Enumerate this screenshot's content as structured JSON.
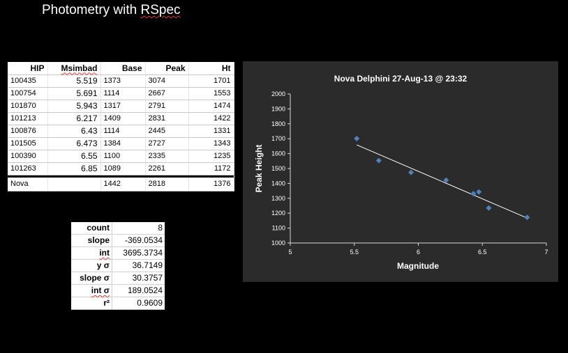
{
  "page": {
    "title_prefix": "Photometry with ",
    "title_underlined": "RSpec"
  },
  "table": {
    "headers": [
      "HIP",
      "Msimbad",
      "Base",
      "Peak",
      "Ht"
    ],
    "rows": [
      [
        "100435",
        "5.519",
        "1373",
        "3074",
        "1701"
      ],
      [
        "100754",
        "5.691",
        "1114",
        "2667",
        "1553"
      ],
      [
        "101870",
        "5.943",
        "1317",
        "2791",
        "1474"
      ],
      [
        "101213",
        "6.217",
        "1409",
        "2831",
        "1422"
      ],
      [
        "100876",
        "6.43",
        "1114",
        "2445",
        "1331"
      ],
      [
        "101505",
        "6.473",
        "1384",
        "2727",
        "1343"
      ],
      [
        "100390",
        "6.55",
        "1100",
        "2335",
        "1235"
      ],
      [
        "101263",
        "6.85",
        "1089",
        "2261",
        "1172"
      ]
    ],
    "nova_row": [
      "Nova",
      "",
      "1442",
      "2818",
      "1376"
    ]
  },
  "stats": [
    {
      "label": "count",
      "value": "8"
    },
    {
      "label": "slope",
      "value": "-369.0534"
    },
    {
      "label": "int",
      "value": "3695.3734"
    },
    {
      "label": "y σ",
      "value": "36.7149"
    },
    {
      "label": "slope σ",
      "value": "30.3757"
    },
    {
      "label": "int σ",
      "value": "189.0524"
    },
    {
      "label": "r²",
      "value": "0.9609"
    }
  ],
  "colors": {
    "background": "#000000",
    "chart_bg": "#2b2b2b",
    "marker": "#4f81bd",
    "trendline": "#ffffff"
  },
  "chart_data": {
    "type": "scatter",
    "title": "Nova Delphini  27-Aug-13 @ 23:32",
    "xlabel": "Magnitude",
    "ylabel": "Peak Height",
    "xlim": [
      5,
      7
    ],
    "ylim": [
      1000,
      2000
    ],
    "xticks": [
      "5",
      "5.5",
      "6",
      "6.5",
      "7"
    ],
    "yticks": [
      "1000",
      "1100",
      "1200",
      "1300",
      "1400",
      "1500",
      "1600",
      "1700",
      "1800",
      "1900",
      "2000"
    ],
    "series": [
      {
        "x": [
          5.519,
          5.691,
          5.943,
          6.217,
          6.43,
          6.473,
          6.55,
          6.85
        ],
        "y": [
          1701,
          1553,
          1474,
          1422,
          1331,
          1343,
          1235,
          1172
        ]
      }
    ],
    "trendline": {
      "slope": -369.0534,
      "intercept": 3695.3734,
      "x_range": [
        5.519,
        6.85
      ]
    },
    "grid": false,
    "legend": "none"
  }
}
